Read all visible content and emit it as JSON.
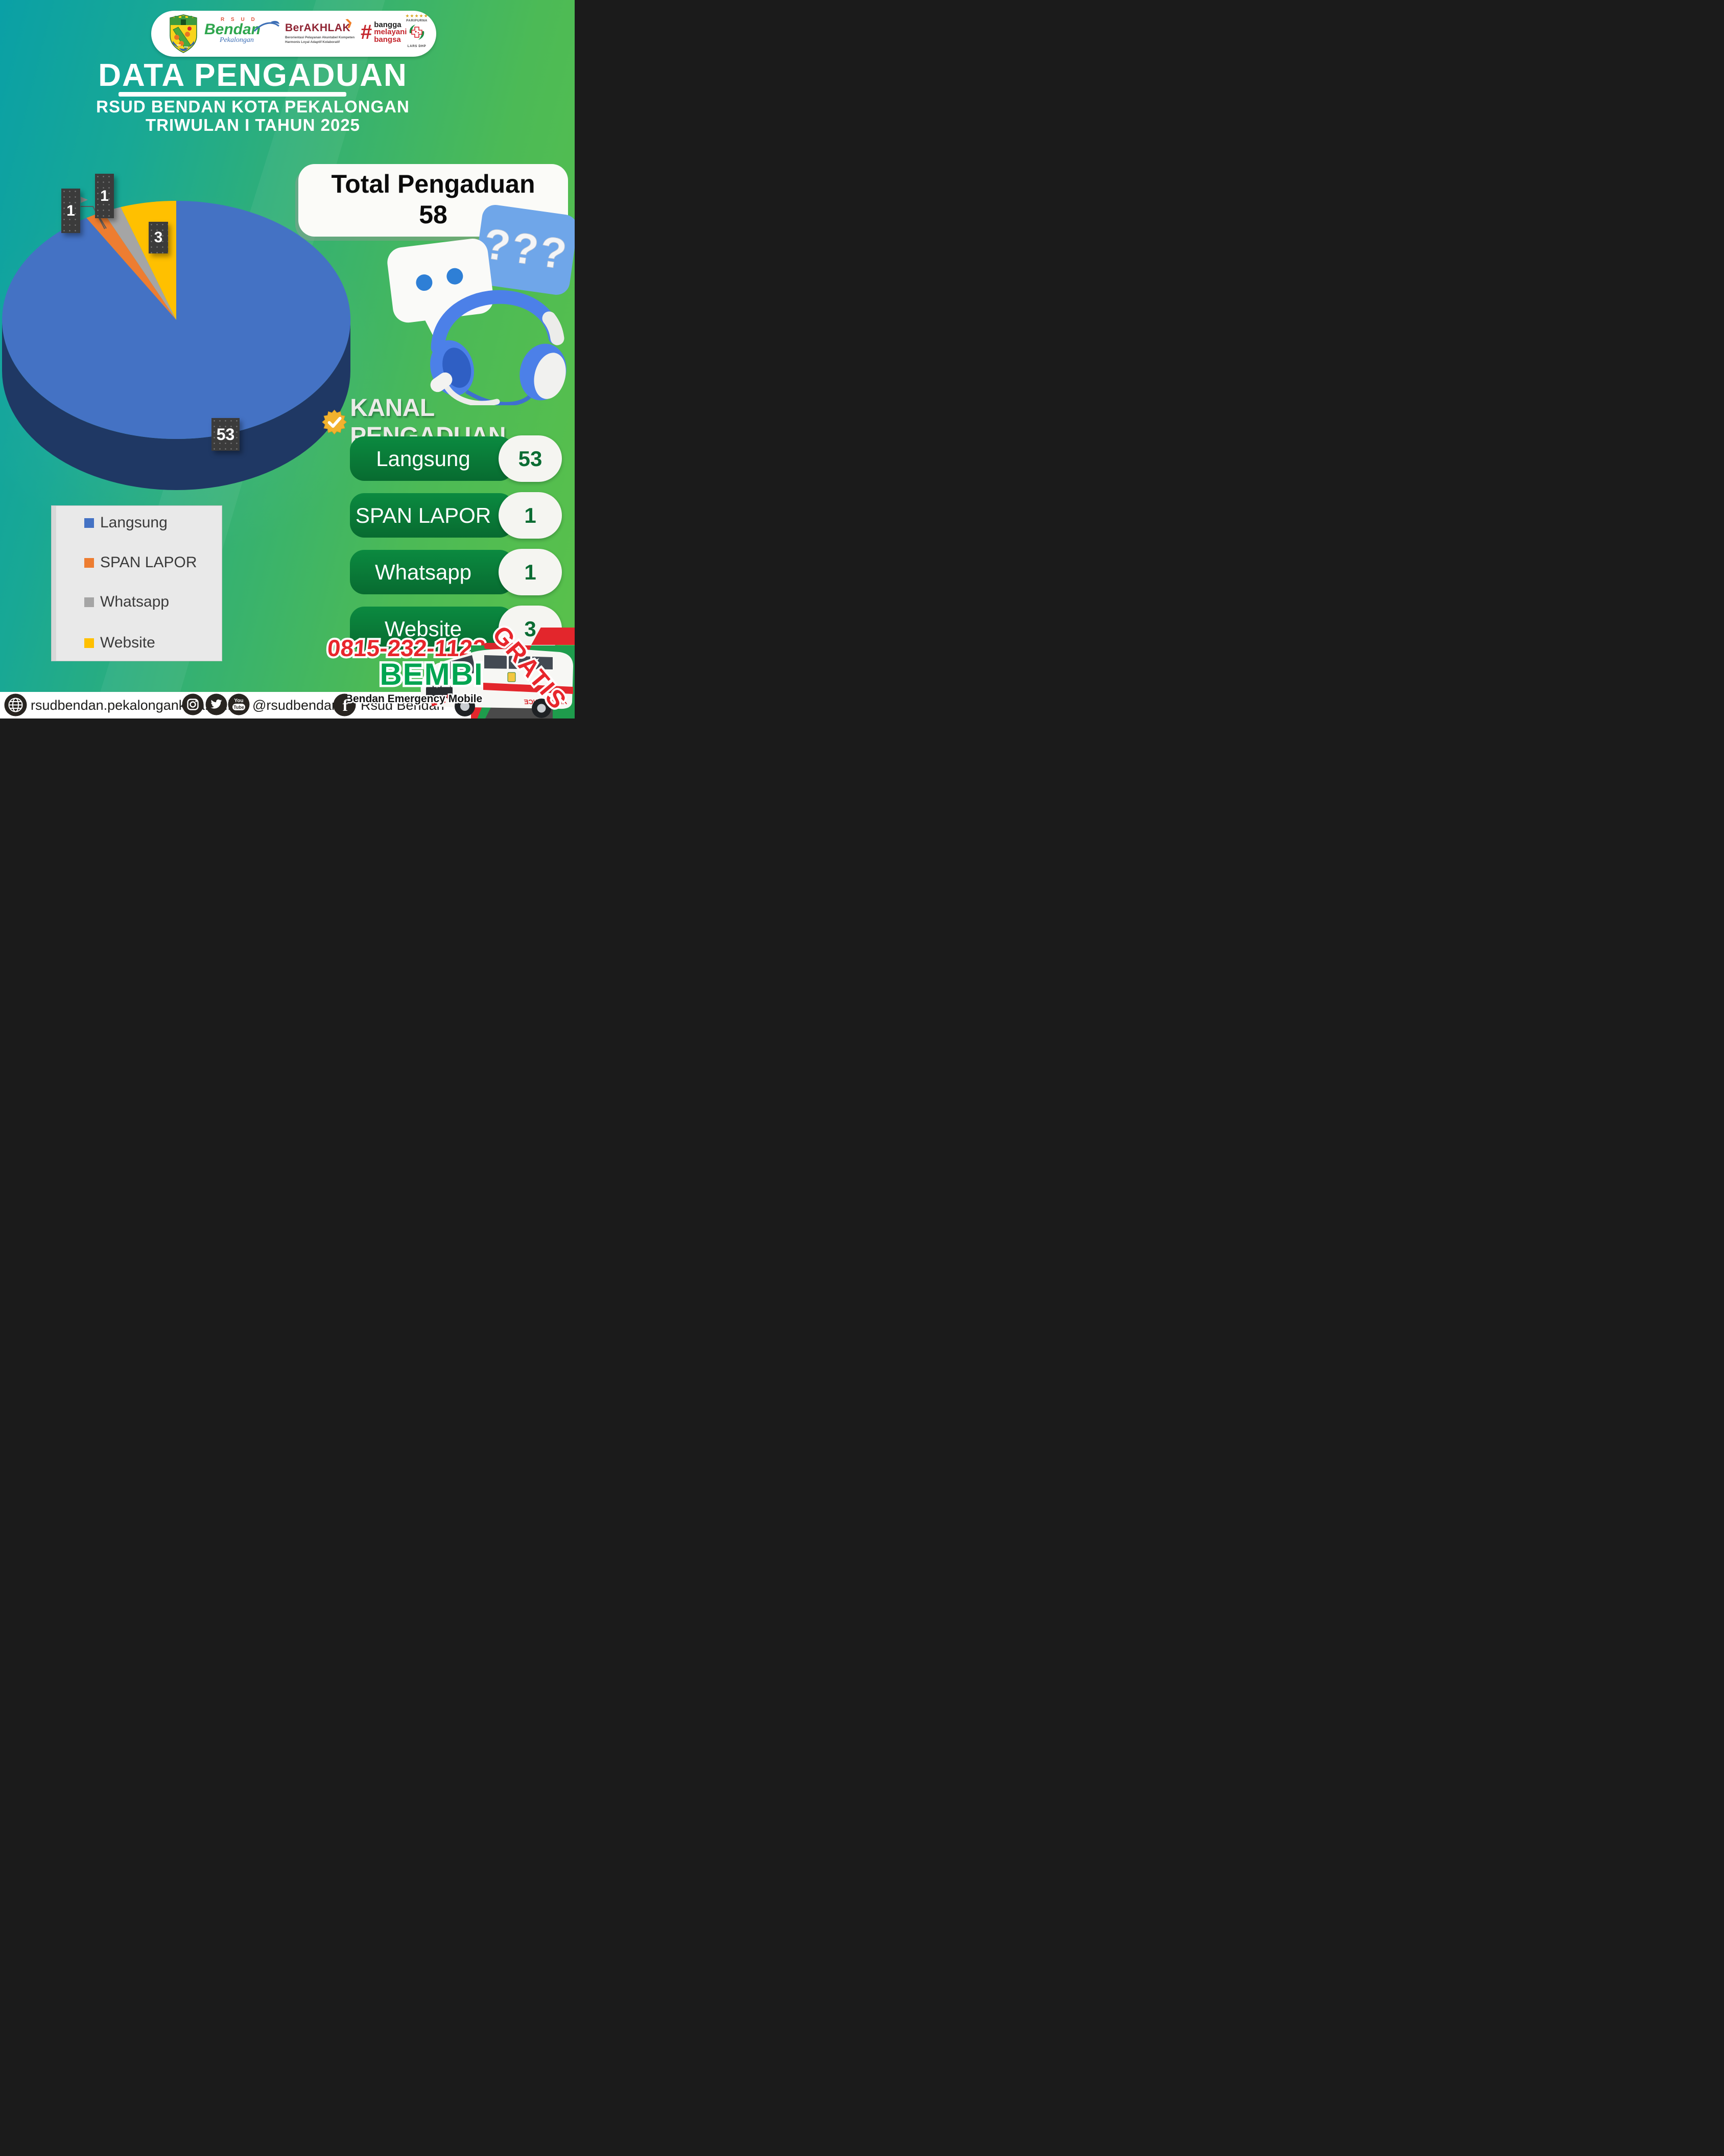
{
  "header": {
    "title": "DATA PENGADUAN",
    "subtitle1": "RSUD BENDAN KOTA PEKALONGAN",
    "subtitle2": "TRIWULAN I TAHUN 2025",
    "logos": {
      "rsud_top": "R S U D",
      "rsud_name": "Bendan",
      "rsud_place": "Pekalongan",
      "berakhlak_title": "BerAKHLAK",
      "berakhlak_arrow": "❯",
      "berakhlak_line1": "Berorientasi Pelayanan Akuntabel Kompeten",
      "berakhlak_line2": "Harmonis Loyal Adaptif Kolaboratif",
      "bangga_hash": "#",
      "bangga_word1": "bangga",
      "bangga_word2": "melayani",
      "bangga_word3": "bangsa",
      "paripurna_stars": "★★★★★",
      "paripurna_title": "PARIPURNA",
      "paripurna_sub": "LARS DHP"
    }
  },
  "total": {
    "label": "Total Pengaduan",
    "value": "58"
  },
  "chart_data": {
    "type": "pie",
    "style": "3d",
    "title": "Data Pengaduan RSUD Bendan Kota Pekalongan Triwulan I Tahun 2025",
    "categories": [
      "Langsung",
      "SPAN LAPOR",
      "Whatsapp",
      "Website"
    ],
    "values": [
      53,
      1,
      1,
      3
    ],
    "data_labels": [
      "53",
      "1",
      "1",
      "3"
    ],
    "colors": [
      "#4472C4",
      "#ED7D31",
      "#A5A5A5",
      "#FFC000"
    ],
    "depth_color": "#1F3864",
    "total": 58,
    "legend_position": "bottom-left"
  },
  "kanal": {
    "heading": "KANAL PENGADUAN",
    "rows": [
      {
        "label": "Langsung",
        "value": "53"
      },
      {
        "label": "SPAN LAPOR",
        "value": "1"
      },
      {
        "label": "Whatsapp",
        "value": "1"
      },
      {
        "label": "Website",
        "value": "3"
      }
    ]
  },
  "legend": {
    "items": [
      {
        "label": "Langsung",
        "color": "#4472C4"
      },
      {
        "label": "SPAN LAPOR",
        "color": "#ED7D31"
      },
      {
        "label": "Whatsapp",
        "color": "#A5A5A5"
      },
      {
        "label": "Website",
        "color": "#FFC000"
      }
    ]
  },
  "bembi": {
    "phone": "0815-232-1122",
    "brand": "BEMBI",
    "tagline": "Bendan Emergency Mobile",
    "gratis": "GRATIS",
    "ambulance_text": "AMBULANCE"
  },
  "footer": {
    "website": "rsudbendan.pekalongankota.go.id",
    "handle": "@rsudbendan",
    "facebook_name": "Rsud Bendan",
    "icons": {
      "youtube_top": "You",
      "youtube_bottom": "Tube",
      "facebook_glyph": "f"
    }
  },
  "colors": {
    "background_teal": "#0AA0A6",
    "background_green": "#5AC14A",
    "pill_green": "#097A37",
    "pill_number_green": "#0A6C33",
    "brand_green": "#00A551",
    "accent_red": "#E8262C",
    "badge_gold": "#F2B22E"
  }
}
